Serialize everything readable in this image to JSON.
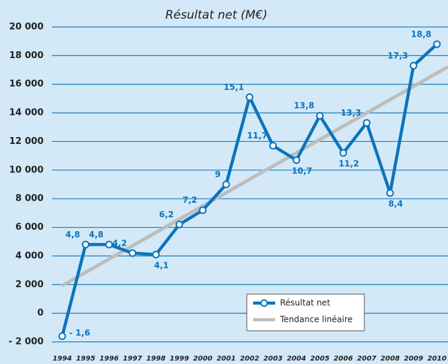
{
  "chart_data": {
    "type": "line",
    "title": "Résultat net (M€)",
    "categories": [
      "1994",
      "1995",
      "1996",
      "1997",
      "1998",
      "1999",
      "2000",
      "2001",
      "2002",
      "2003",
      "2004",
      "2005",
      "2006",
      "2007",
      "2008",
      "2009",
      "2010"
    ],
    "series": [
      {
        "name": "Résultat net",
        "color": "#0b74bc",
        "values": [
          -1600,
          4800,
          4800,
          4200,
          4100,
          6200,
          7200,
          9000,
          15100,
          11700,
          10700,
          13800,
          11200,
          13300,
          8400,
          17300,
          18800
        ],
        "value_labels": [
          "- 1,6",
          "4,8",
          "4,8",
          "4,2",
          "4,1",
          "6,2",
          "7,2",
          "9",
          "15,1",
          "11,7",
          "10,7",
          "13,8",
          "11,2",
          "13,3",
          "8,4",
          "17,3",
          "18,8"
        ]
      }
    ],
    "trend": {
      "name": "Tendance linéaire",
      "color": "#bdbdbd"
    },
    "ylim": [
      -2000,
      20000
    ],
    "yticks": [
      {
        "value": -2000,
        "label": "- 2 000"
      },
      0,
      {
        "value": 2000,
        "label": "2 000"
      },
      {
        "value": 4000,
        "label": "4 000"
      },
      {
        "value": 6000,
        "label": "6 000"
      },
      {
        "value": 8000,
        "label": "8 000"
      },
      {
        "value": 10000,
        "label": "10 000"
      },
      {
        "value": 12000,
        "label": "12 000"
      },
      {
        "value": 14000,
        "label": "14 000"
      },
      {
        "value": 16000,
        "label": "16 000"
      },
      {
        "value": 18000,
        "label": "18 000"
      },
      {
        "value": 20000,
        "label": "20 000"
      }
    ],
    "grid": true
  }
}
